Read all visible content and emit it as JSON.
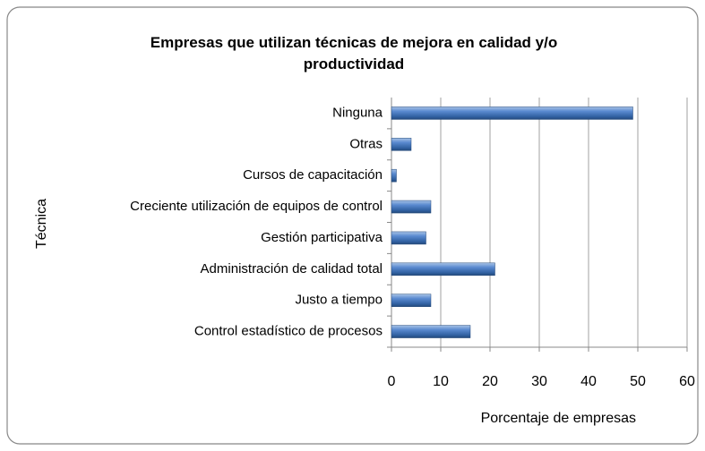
{
  "chart_data": {
    "type": "bar",
    "orientation": "horizontal",
    "title": "Empresas que utilizan técnicas  de mejora en calidad y/o productividad",
    "xlabel": "Porcentaje de empresas",
    "ylabel": "Técnica",
    "categories": [
      "Control estadístico  de procesos",
      "Justo a tiempo",
      "Administración de calidad total",
      "Gestión participativa",
      "Creciente utilización de equipos de control",
      "Cursos de capacitación",
      "Otras",
      "Ninguna"
    ],
    "values": [
      16,
      8,
      21,
      7,
      8,
      1,
      4,
      49
    ],
    "color": "#4f81bd",
    "xlim": [
      0,
      60
    ],
    "xticks": [
      0,
      10,
      20,
      30,
      40,
      50,
      60
    ],
    "grid": true
  }
}
